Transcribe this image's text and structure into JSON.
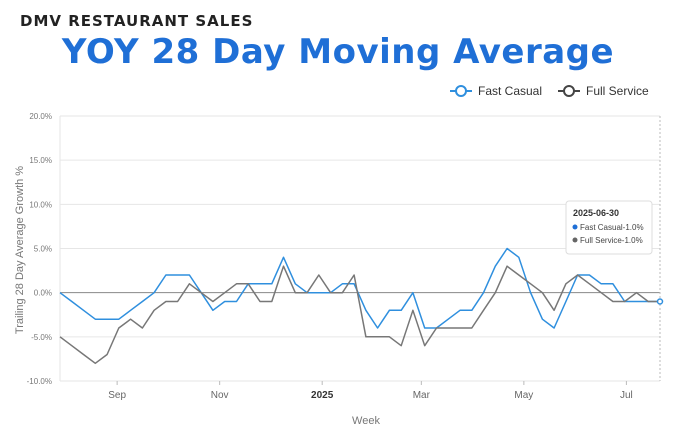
{
  "header": {
    "supertitle": "DMV RESTAURANT SALES",
    "title": "YOY 28 Day Moving Average"
  },
  "colors": {
    "title": "#1f6fd6",
    "fast_casual": "#2f8fde",
    "full_service": "#777777"
  },
  "chart_data": {
    "type": "line",
    "xlabel": "Week",
    "ylabel": "Trailing 28 Day Average Growth %",
    "ylim": [
      -10,
      20
    ],
    "yticks": [
      {
        "v": 20,
        "label": "20.0%"
      },
      {
        "v": 15,
        "label": "15.0%"
      },
      {
        "v": 10,
        "label": "10.0%"
      },
      {
        "v": 5,
        "label": "5.0%"
      },
      {
        "v": 0,
        "label": "0.0%"
      },
      {
        "v": -5,
        "label": "-5.0%"
      },
      {
        "v": -10,
        "label": "-10.0%"
      }
    ],
    "xticks": [
      {
        "label": "Sep",
        "bold": false
      },
      {
        "label": "Nov",
        "bold": false
      },
      {
        "label": "2025",
        "bold": true
      },
      {
        "label": "Mar",
        "bold": false
      },
      {
        "label": "May",
        "bold": false
      },
      {
        "label": "Jul",
        "bold": false
      }
    ],
    "x_start": "2024-07-29",
    "x_interval_days": 7,
    "x_tick_dates": [
      "2024-09-01",
      "2024-11-01",
      "2025-01-01",
      "2025-03-01",
      "2025-05-01",
      "2025-07-01"
    ],
    "grid": true,
    "legend_position": "top-right",
    "series": [
      {
        "name": "Fast Casual",
        "values": [
          0,
          -1,
          -2,
          -3,
          -3,
          -3,
          -2,
          -1,
          0,
          2,
          2,
          2,
          0,
          -2,
          -1,
          -1,
          1,
          1,
          1,
          4,
          1,
          0,
          0,
          0,
          1,
          1,
          -2,
          -4,
          -2,
          -2,
          0,
          -4,
          -4,
          -3,
          -2,
          -2,
          0,
          3,
          5,
          4,
          0,
          -3,
          -4,
          -1,
          2,
          2,
          1,
          1,
          -1,
          -1,
          -1,
          -1
        ]
      },
      {
        "name": "Full Service",
        "values": [
          -5,
          -6,
          -7,
          -8,
          -7,
          -4,
          -3,
          -4,
          -2,
          -1,
          -1,
          1,
          0,
          -1,
          0,
          1,
          1,
          -1,
          -1,
          3,
          0,
          0,
          2,
          0,
          0,
          2,
          -5,
          -5,
          -5,
          -6,
          -2,
          -6,
          -4,
          -4,
          -4,
          -4,
          -2,
          0,
          3,
          2,
          1,
          0,
          -2,
          1,
          2,
          1,
          0,
          -1,
          -1,
          0,
          -1,
          -1
        ]
      }
    ],
    "tooltip": {
      "date": "2025-06-30",
      "rows": [
        "Fast Casual-1.0%",
        "Full Service-1.0%"
      ]
    }
  }
}
